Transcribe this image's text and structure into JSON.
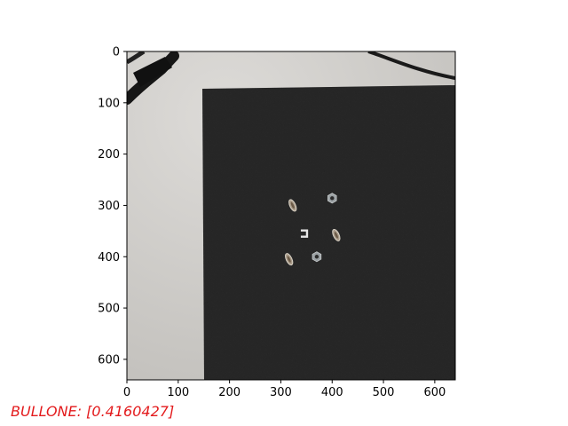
{
  "image": {
    "description_colors": {
      "floor": "#cfcdc9",
      "mat": "#2a2a2a",
      "cable": "#1c1c1c"
    }
  },
  "axes": {
    "x_ticks": [
      "0",
      "100",
      "200",
      "300",
      "400",
      "500",
      "600"
    ],
    "y_ticks": [
      "0",
      "100",
      "200",
      "300",
      "400",
      "500",
      "600"
    ],
    "x_range": [
      0,
      640
    ],
    "y_range": [
      0,
      640
    ],
    "frame_color": "#000000"
  },
  "objects": [
    {
      "name": "screw-left-top",
      "x": 323,
      "y": 300,
      "kind": "screw"
    },
    {
      "name": "nut-top-right",
      "x": 400,
      "y": 286,
      "kind": "nut"
    },
    {
      "name": "bracket-center",
      "x": 345,
      "y": 355,
      "kind": "bracket"
    },
    {
      "name": "screw-right",
      "x": 408,
      "y": 358,
      "kind": "screw"
    },
    {
      "name": "screw-left-bottom",
      "x": 316,
      "y": 405,
      "kind": "screw"
    },
    {
      "name": "nut-bottom",
      "x": 370,
      "y": 400,
      "kind": "nut"
    }
  ],
  "caption": {
    "text": "BULLONE: [0.4160427]",
    "color": "#e31a1c"
  }
}
